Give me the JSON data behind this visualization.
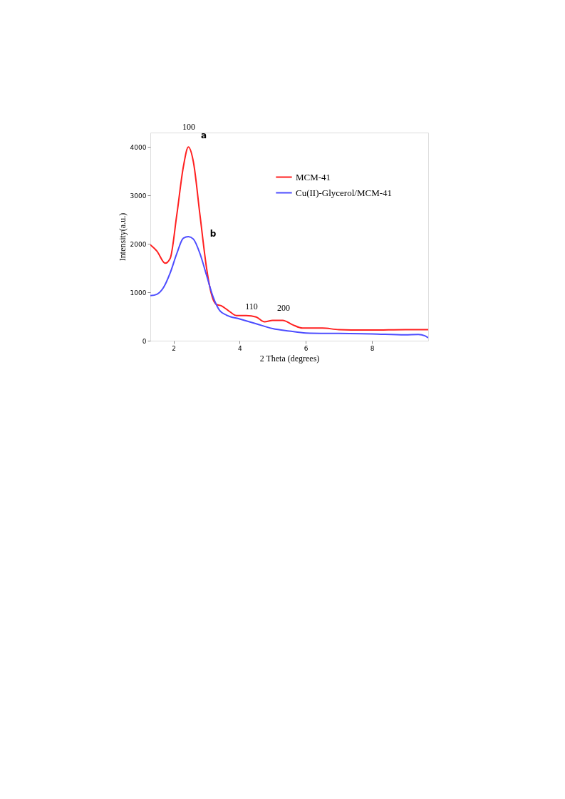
{
  "chart_data": {
    "type": "line",
    "xlabel": "2 Theta (degrees)",
    "ylabel": "Intensity(a.u.)",
    "xlim": [
      1.3,
      9.7
    ],
    "xticks": [
      2,
      4,
      6,
      8
    ],
    "ylim": [
      0,
      4300
    ],
    "yticks": [
      0,
      1000,
      2000,
      3000,
      4000
    ],
    "grid": false,
    "legend": "top right",
    "marker": "none",
    "line_style": "solid",
    "series": [
      {
        "name": "MCM-41",
        "color": "#ff2020",
        "x": [
          1.3,
          1.5,
          1.75,
          1.9,
          2.1,
          2.3,
          2.45,
          2.6,
          2.8,
          3.0,
          3.1,
          3.2,
          3.3,
          3.45,
          3.7,
          3.9,
          4.2,
          4.5,
          4.75,
          5.0,
          5.3,
          5.6,
          5.9,
          6.5,
          7.0,
          8.0,
          9.0,
          9.7
        ],
        "values": [
          1980,
          1850,
          1600,
          1700,
          2600,
          3600,
          4000,
          3700,
          2600,
          1500,
          1100,
          850,
          750,
          720,
          600,
          520,
          520,
          490,
          390,
          420,
          420,
          330,
          260,
          260,
          230,
          220,
          230,
          230
        ]
      },
      {
        "name": "Cu(II)-Glycerol/MCM-41",
        "color": "#4d4dff",
        "x": [
          1.3,
          1.5,
          1.7,
          1.9,
          2.1,
          2.3,
          2.45,
          2.6,
          2.8,
          3.0,
          3.2,
          3.4,
          3.6,
          4.0,
          4.5,
          5.0,
          5.5,
          6.0,
          7.0,
          8.0,
          9.0,
          9.4,
          9.6,
          9.7
        ],
        "values": [
          930,
          960,
          1100,
          1400,
          1800,
          2120,
          2150,
          2100,
          1800,
          1350,
          900,
          620,
          530,
          450,
          350,
          250,
          200,
          160,
          150,
          140,
          120,
          130,
          100,
          60
        ]
      }
    ],
    "annotations": [
      "100",
      "a",
      "b",
      "110",
      "200"
    ]
  }
}
